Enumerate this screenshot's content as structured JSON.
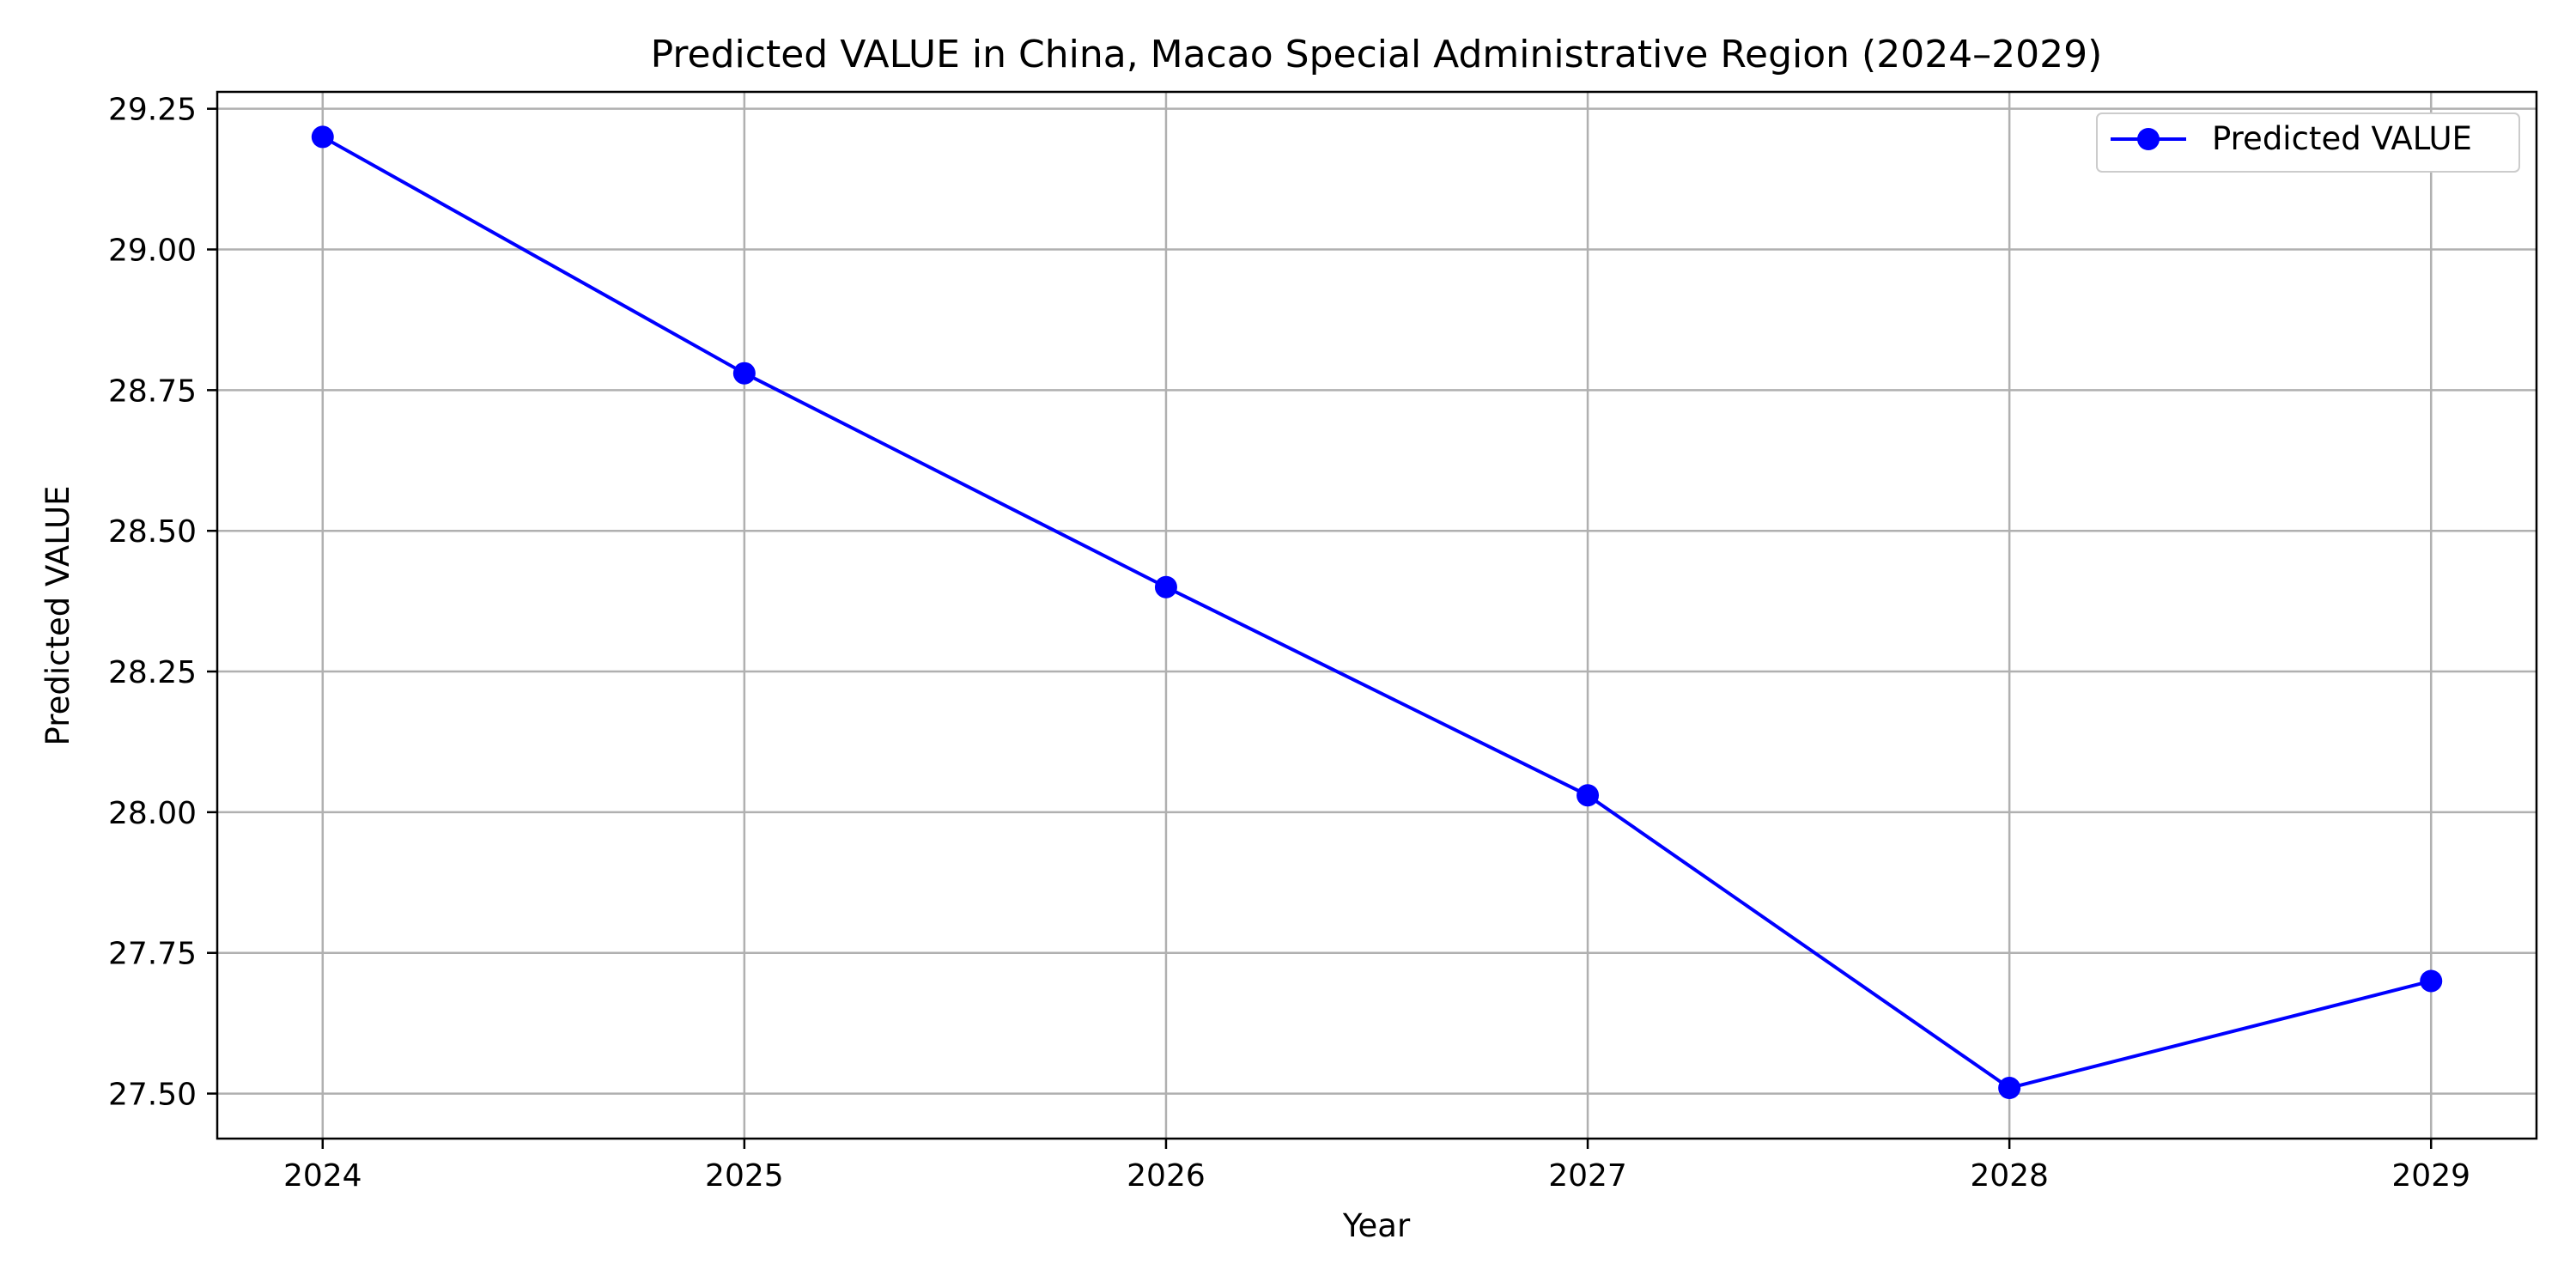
{
  "chart_data": {
    "type": "line",
    "title": "Predicted VALUE in China, Macao Special Administrative Region (2024–2029)",
    "xlabel": "Year",
    "ylabel": "Predicted VALUE",
    "x": [
      2024,
      2025,
      2026,
      2027,
      2028,
      2029
    ],
    "x_tick_labels": [
      "2024",
      "2025",
      "2026",
      "2027",
      "2028",
      "2029"
    ],
    "xlim": [
      2023.75,
      2029.25
    ],
    "ylim": [
      27.42,
      29.28
    ],
    "y_ticks": [
      27.5,
      27.75,
      28.0,
      28.25,
      28.5,
      28.75,
      29.0,
      29.25
    ],
    "y_tick_labels": [
      "27.50",
      "27.75",
      "28.00",
      "28.25",
      "28.50",
      "28.75",
      "29.00",
      "29.25"
    ],
    "series": [
      {
        "name": "Predicted VALUE",
        "color": "#0000ff",
        "marker": "circle",
        "values": [
          29.2,
          28.78,
          28.4,
          28.03,
          27.51,
          27.7
        ]
      }
    ],
    "grid": true,
    "legend_position": "top-right"
  }
}
